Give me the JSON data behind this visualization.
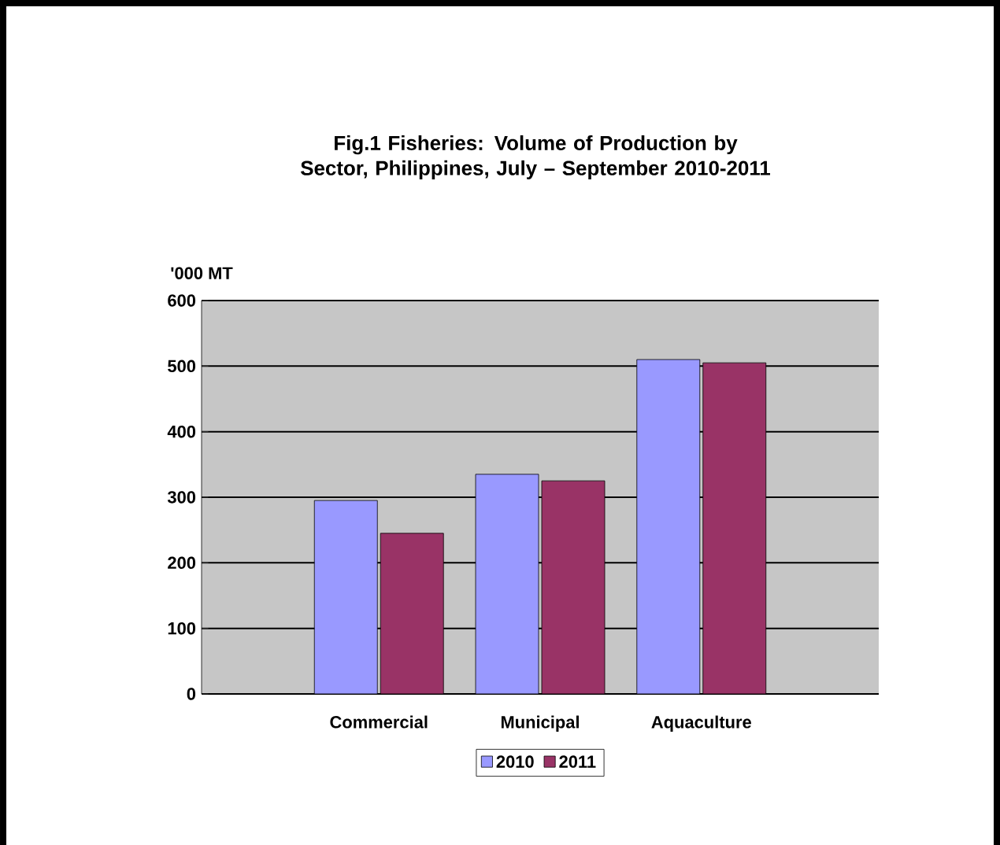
{
  "chart_data": {
    "type": "bar",
    "title": "Fig.1 Fisheries: Volume of Production by Sector, Philippines, July – September 2010-2011",
    "ylabel": "'000 MT",
    "categories": [
      "Commercial",
      "Municipal",
      "Aquaculture"
    ],
    "series": [
      {
        "name": "2010",
        "color": "#9999ff",
        "values": [
          295,
          335,
          510
        ]
      },
      {
        "name": "2011",
        "color": "#993366",
        "values": [
          245,
          325,
          505
        ]
      }
    ],
    "ylim": [
      0,
      600
    ],
    "yticks": [
      0,
      100,
      200,
      300,
      400,
      500,
      600
    ],
    "grid": "y",
    "legend": "bottom"
  }
}
